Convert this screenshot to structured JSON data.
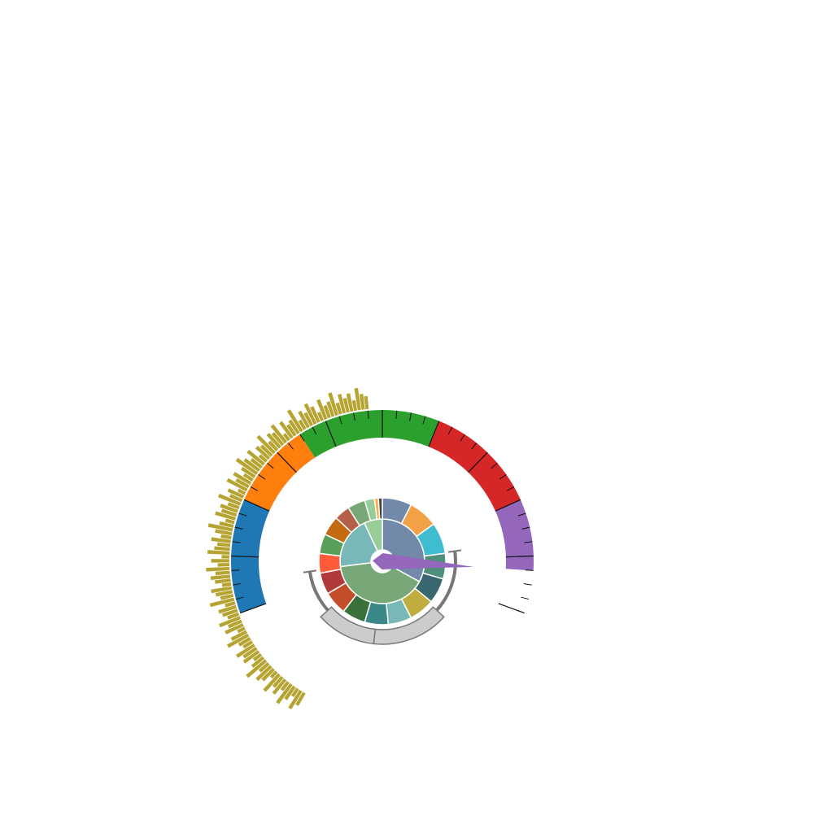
{
  "chart_data": {
    "type": "gauge",
    "gauge": {
      "value_fraction": 0.925,
      "start_angle_deg": 200,
      "end_angle_deg": -20,
      "bands": [
        {
          "fraction": 0.2,
          "color": "#1f77b4"
        },
        {
          "fraction": 0.15,
          "color": "#ff7f0e"
        },
        {
          "fraction": 0.25,
          "color": "#2ca02c"
        },
        {
          "fraction": 0.2,
          "color": "#d62728"
        },
        {
          "fraction": 0.2,
          "color": "#9467bd"
        }
      ],
      "needle_color": "#9467bd",
      "minor_ticks": 8,
      "major_ticks": 3
    },
    "radial_bars": {
      "color": "#b5a432",
      "start_angle_deg": 240,
      "end_angle_deg": 95,
      "values": [
        0.55,
        0.8,
        0.35,
        0.6,
        0.9,
        0.4,
        0.7,
        0.5,
        0.85,
        0.3,
        0.6,
        0.75,
        0.45,
        0.95,
        0.55,
        0.35,
        0.7,
        0.6,
        0.8,
        0.4,
        0.5,
        0.9,
        0.65,
        0.3,
        0.75,
        0.55,
        0.85,
        0.45,
        0.6,
        0.7,
        0.4,
        0.95,
        0.5,
        0.65,
        0.8,
        0.35,
        0.6,
        0.75,
        0.55,
        0.9,
        0.45,
        0.7,
        0.3,
        0.85,
        0.6,
        0.5,
        0.75,
        0.4,
        0.65,
        0.95,
        0.55,
        0.35,
        0.8,
        0.6,
        0.7,
        0.45,
        0.9,
        0.5,
        0.65,
        0.3,
        0.85,
        0.55,
        0.75,
        0.4,
        0.6,
        0.95,
        0.7,
        0.5,
        0.8,
        0.35,
        0.65,
        0.55,
        0.9,
        0.45,
        0.7,
        0.6,
        0.85,
        0.3,
        0.75,
        0.5,
        0.6,
        0.95,
        0.4,
        0.7,
        0.55,
        0.85,
        0.65,
        0.35,
        0.8,
        0.5,
        0.6,
        0.9,
        0.45,
        0.75,
        0.55,
        0.7,
        0.4,
        0.85,
        0.6,
        0.5
      ]
    },
    "sunburst": {
      "inner": [
        {
          "fraction": 0.33,
          "color": "#7389aa"
        },
        {
          "fraction": 0.4,
          "color": "#78a878"
        },
        {
          "fraction": 0.2,
          "color": "#78b8b8"
        },
        {
          "fraction": 0.07,
          "color": "#98cc98"
        }
      ],
      "outer": [
        {
          "fraction": 0.075,
          "color": "#7389aa"
        },
        {
          "fraction": 0.075,
          "color": "#f3a146"
        },
        {
          "fraction": 0.08,
          "color": "#3fbccf"
        },
        {
          "fraction": 0.065,
          "color": "#4d8f7a"
        },
        {
          "fraction": 0.065,
          "color": "#3a6670"
        },
        {
          "fraction": 0.065,
          "color": "#bfae3f"
        },
        {
          "fraction": 0.06,
          "color": "#78b8b8"
        },
        {
          "fraction": 0.06,
          "color": "#3a8888"
        },
        {
          "fraction": 0.06,
          "color": "#3a703a"
        },
        {
          "fraction": 0.06,
          "color": "#c44e2a"
        },
        {
          "fraction": 0.055,
          "color": "#b03a3a"
        },
        {
          "fraction": 0.05,
          "color": "#ff5a3a"
        },
        {
          "fraction": 0.05,
          "color": "#58a058"
        },
        {
          "fraction": 0.05,
          "color": "#c46a10"
        },
        {
          "fraction": 0.04,
          "color": "#b56048"
        },
        {
          "fraction": 0.045,
          "color": "#78a878"
        },
        {
          "fraction": 0.025,
          "color": "#98cc98"
        },
        {
          "fraction": 0.01,
          "color": "#ffaa44"
        },
        {
          "fraction": 0.01,
          "color": "#444444"
        }
      ],
      "bracket_color": "#777777",
      "bracket_fill": "#cccccc"
    }
  }
}
